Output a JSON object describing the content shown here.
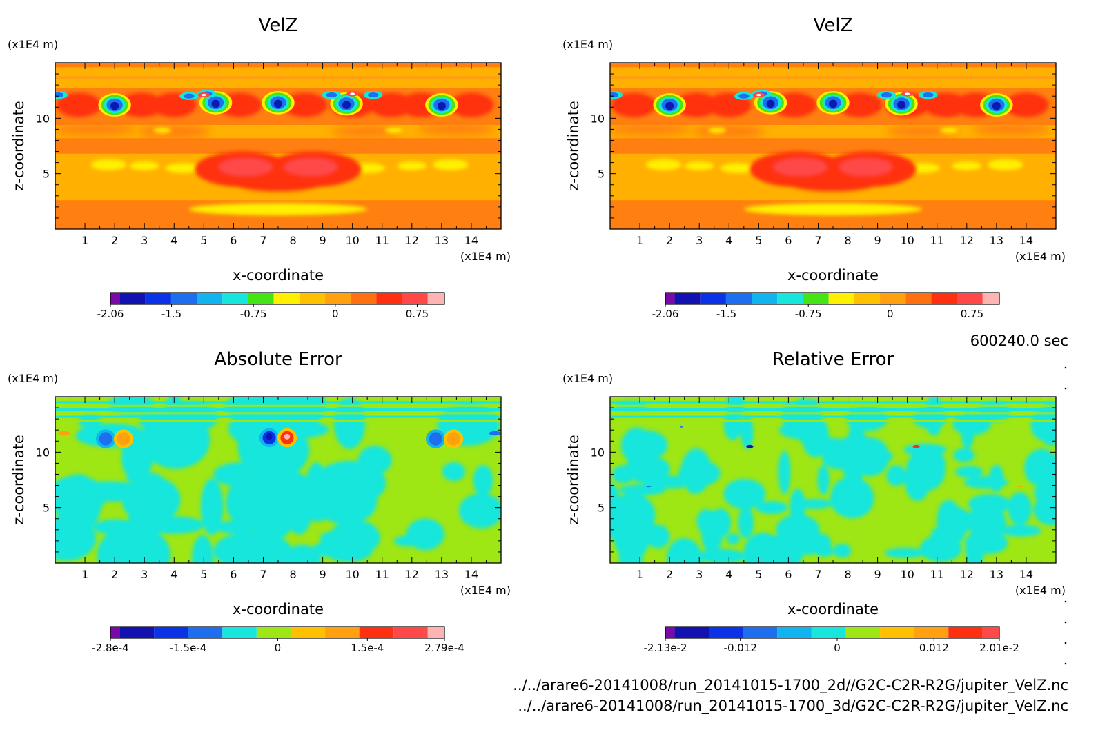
{
  "time_label": "600240.0 sec",
  "footer": {
    "line1": "../../arare6-20141008/run_20141015-1700_2d//G2C-C2R-R2G/jupiter_VelZ.nc",
    "line2": "../../arare6-20141008/run_20141015-1700_3d/G2C-C2R-R2G/jupiter_VelZ.nc"
  },
  "chart_data": [
    {
      "type": "heatmap",
      "title": "VelZ",
      "xlabel": "x-coordinate",
      "ylabel": "z-coordinate",
      "x_unit": "(x1E4 m)",
      "y_unit": "(x1E4 m)",
      "x_ticks": [
        "1",
        "2",
        "3",
        "4",
        "5",
        "6",
        "7",
        "8",
        "9",
        "10",
        "11",
        "12",
        "13",
        "14"
      ],
      "y_ticks": [
        "5",
        "10"
      ],
      "xlim": [
        0,
        15
      ],
      "ylim": [
        0,
        15
      ],
      "colorbar": {
        "colors": [
          "#7a0aa8",
          "#1212b0",
          "#0a32e6",
          "#1e6ef0",
          "#12b4f0",
          "#18e6dc",
          "#44e416",
          "#fff000",
          "#ffc000",
          "#ffa010",
          "#ff7010",
          "#ff3010",
          "#ff4848",
          "#ffb4b4"
        ],
        "labels": [
          "-2.06",
          "-1.5",
          "-0.75",
          "0",
          "0.75"
        ],
        "label_values": [
          -2.06,
          -1.5,
          -0.75,
          0,
          0.75
        ],
        "range": [
          -2.06,
          1.0
        ]
      }
    },
    {
      "type": "heatmap",
      "title": "VelZ",
      "xlabel": "x-coordinate",
      "ylabel": "z-coordinate",
      "x_unit": "(x1E4 m)",
      "y_unit": "(x1E4 m)",
      "x_ticks": [
        "1",
        "2",
        "3",
        "4",
        "5",
        "6",
        "7",
        "8",
        "9",
        "10",
        "11",
        "12",
        "13",
        "14"
      ],
      "y_ticks": [
        "5",
        "10"
      ],
      "xlim": [
        0,
        15
      ],
      "ylim": [
        0,
        15
      ],
      "colorbar": {
        "colors": [
          "#7a0aa8",
          "#1212b0",
          "#0a32e6",
          "#1e6ef0",
          "#12b4f0",
          "#18e6dc",
          "#44e416",
          "#fff000",
          "#ffc000",
          "#ffa010",
          "#ff7010",
          "#ff3010",
          "#ff4848",
          "#ffb4b4"
        ],
        "labels": [
          "-2.06",
          "-1.5",
          "-0.75",
          "0",
          "0.75"
        ],
        "label_values": [
          -2.06,
          -1.5,
          -0.75,
          0,
          0.75
        ],
        "range": [
          -2.06,
          1.0
        ]
      }
    },
    {
      "type": "heatmap",
      "title": "Absolute Error",
      "xlabel": "x-coordinate",
      "ylabel": "z-coordinate",
      "x_unit": "(x1E4 m)",
      "y_unit": "(x1E4 m)",
      "x_ticks": [
        "1",
        "2",
        "3",
        "4",
        "5",
        "6",
        "7",
        "8",
        "9",
        "10",
        "11",
        "12",
        "13",
        "14"
      ],
      "y_ticks": [
        "5",
        "10"
      ],
      "xlim": [
        0,
        15
      ],
      "ylim": [
        0,
        15
      ],
      "colorbar": {
        "colors": [
          "#7a0aa8",
          "#1212b0",
          "#0a32e6",
          "#1e6ef0",
          "#18e6dc",
          "#9ee614",
          "#ffc000",
          "#ffa010",
          "#ff3010",
          "#ff4848",
          "#ffb4b4"
        ],
        "labels": [
          "-2.8e-4",
          "-1.5e-4",
          "0",
          "1.5e-4",
          "2.79e-4"
        ],
        "label_values": [
          -2.8,
          -1.5,
          0,
          1.5,
          2.79
        ],
        "range": [
          -2.8,
          2.79
        ]
      }
    },
    {
      "type": "heatmap",
      "title": "Relative Error",
      "xlabel": "x-coordinate",
      "ylabel": "z-coordinate",
      "x_unit": "(x1E4 m)",
      "y_unit": "(x1E4 m)",
      "x_ticks": [
        "1",
        "2",
        "3",
        "4",
        "5",
        "6",
        "7",
        "8",
        "9",
        "10",
        "11",
        "12",
        "13",
        "14"
      ],
      "y_ticks": [
        "5",
        "10"
      ],
      "xlim": [
        0,
        15
      ],
      "ylim": [
        0,
        15
      ],
      "colorbar": {
        "colors": [
          "#7a0aa8",
          "#1212b0",
          "#0a32e6",
          "#1e6ef0",
          "#12b4f0",
          "#18e6dc",
          "#9ee614",
          "#ffc000",
          "#ffa010",
          "#ff3010",
          "#ff4848"
        ],
        "labels": [
          "-2.13e-2",
          "-0.012",
          "0",
          "0.012",
          "2.01e-2"
        ],
        "label_values": [
          -2.13,
          -1.2,
          0,
          1.2,
          2.01
        ],
        "range": [
          -2.13,
          2.01
        ]
      }
    }
  ]
}
